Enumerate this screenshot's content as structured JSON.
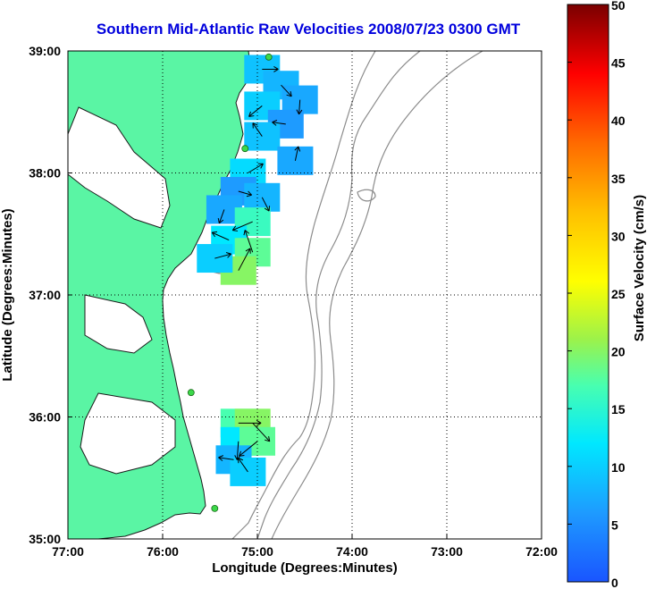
{
  "chart_data": {
    "type": "heatmap",
    "title": "Southern Mid-Atlantic Raw Velocities 2008/07/23 0300 GMT",
    "xlabel": "Longitude (Degrees:Minutes)",
    "ylabel": "Latitude (Degrees:Minutes)",
    "x_ticks": [
      "77:00",
      "76:00",
      "75:00",
      "74:00",
      "73:00",
      "72:00"
    ],
    "y_ticks": [
      "39:00",
      "38:00",
      "37:00",
      "36:00",
      "35:00"
    ],
    "xlim": [
      -77,
      -72
    ],
    "ylim": [
      35,
      39
    ],
    "grid": true,
    "colorbar": {
      "label": "Surface Velocity (cm/s)",
      "ticks": [
        "50",
        "45",
        "40",
        "35",
        "30",
        "25",
        "20",
        "15",
        "10",
        "5",
        "0"
      ],
      "range": [
        0,
        50
      ]
    },
    "colors": {
      "land": "#5af5a4",
      "title": "#0000dd",
      "station": "#3cd84a"
    },
    "stations": [
      {
        "lon": -74.88,
        "lat": 38.95
      },
      {
        "lon": -75.13,
        "lat": 38.2
      },
      {
        "lon": -75.7,
        "lat": 36.2
      },
      {
        "lon": -75.45,
        "lat": 35.25
      }
    ],
    "northern_field": {
      "velocity_cells": [
        {
          "lon": -74.95,
          "lat": 38.85,
          "speed": 9
        },
        {
          "lon": -74.75,
          "lat": 38.72,
          "speed": 8
        },
        {
          "lon": -74.55,
          "lat": 38.6,
          "speed": 7
        },
        {
          "lon": -74.95,
          "lat": 38.55,
          "speed": 10
        },
        {
          "lon": -74.7,
          "lat": 38.4,
          "speed": 6
        },
        {
          "lon": -74.95,
          "lat": 38.3,
          "speed": 9
        },
        {
          "lon": -74.6,
          "lat": 38.1,
          "speed": 7
        },
        {
          "lon": -75.1,
          "lat": 38.0,
          "speed": 11
        },
        {
          "lon": -75.2,
          "lat": 37.85,
          "speed": 6
        },
        {
          "lon": -74.95,
          "lat": 37.8,
          "speed": 8
        },
        {
          "lon": -75.35,
          "lat": 37.7,
          "speed": 7
        },
        {
          "lon": -75.05,
          "lat": 37.6,
          "speed": 16
        },
        {
          "lon": -75.3,
          "lat": 37.45,
          "speed": 12
        },
        {
          "lon": -75.05,
          "lat": 37.35,
          "speed": 18
        },
        {
          "lon": -75.2,
          "lat": 37.2,
          "speed": 20
        },
        {
          "lon": -75.45,
          "lat": 37.3,
          "speed": 10
        }
      ]
    },
    "southern_field": {
      "velocity_cells": [
        {
          "lon": -75.2,
          "lat": 35.95,
          "speed": 17
        },
        {
          "lon": -75.05,
          "lat": 35.95,
          "speed": 20
        },
        {
          "lon": -75.2,
          "lat": 35.8,
          "speed": 12
        },
        {
          "lon": -75.0,
          "lat": 35.8,
          "speed": 18
        },
        {
          "lon": -75.25,
          "lat": 35.65,
          "speed": 8
        },
        {
          "lon": -75.1,
          "lat": 35.55,
          "speed": 10
        }
      ]
    }
  }
}
